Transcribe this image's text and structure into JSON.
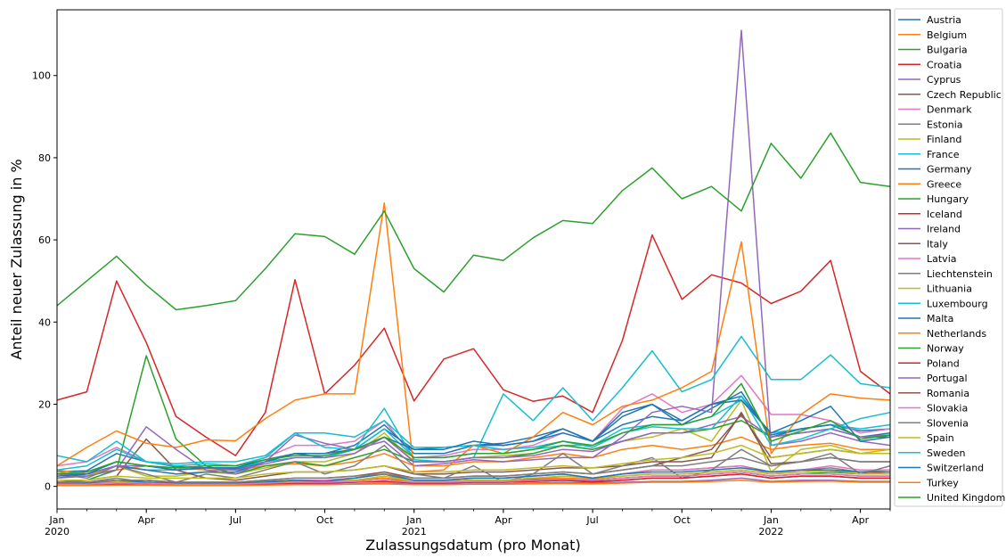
{
  "chart_data": {
    "type": "line",
    "title": "",
    "xlabel": "Zulassungsdatum (pro Monat)",
    "ylabel": "Anteil neuer Zulassung in %",
    "x_range": [
      "2020-01",
      "2022-05"
    ],
    "ylim": [
      -5.5,
      116
    ],
    "grid": false,
    "legend_position": "right",
    "x_ticks": [
      {
        "month": "2020-01",
        "label": "Jan",
        "sub": "2020"
      },
      {
        "month": "2020-04",
        "label": "Apr",
        "sub": ""
      },
      {
        "month": "2020-07",
        "label": "Jul",
        "sub": ""
      },
      {
        "month": "2020-10",
        "label": "Oct",
        "sub": ""
      },
      {
        "month": "2021-01",
        "label": "Jan",
        "sub": "2021"
      },
      {
        "month": "2021-04",
        "label": "Apr",
        "sub": ""
      },
      {
        "month": "2021-07",
        "label": "Jul",
        "sub": ""
      },
      {
        "month": "2021-10",
        "label": "Oct",
        "sub": ""
      },
      {
        "month": "2022-01",
        "label": "Jan",
        "sub": "2022"
      },
      {
        "month": "2022-04",
        "label": "Apr",
        "sub": ""
      }
    ],
    "y_ticks": [
      0,
      20,
      40,
      60,
      80,
      100
    ],
    "months": [
      "2020-01",
      "2020-02",
      "2020-03",
      "2020-04",
      "2020-05",
      "2020-06",
      "2020-07",
      "2020-08",
      "2020-09",
      "2020-10",
      "2020-11",
      "2020-12",
      "2021-01",
      "2021-02",
      "2021-03",
      "2021-04",
      "2021-05",
      "2021-06",
      "2021-07",
      "2021-08",
      "2021-09",
      "2021-10",
      "2021-11",
      "2021-12",
      "2022-01",
      "2022-02",
      "2022-03",
      "2022-04",
      "2022-05"
    ],
    "series": [
      {
        "name": "Austria",
        "color": "#1f77b4",
        "values": [
          3.6,
          3.8,
          8.0,
          6.0,
          4.8,
          4.5,
          4.2,
          6.0,
          8.0,
          7.0,
          9.0,
          14.0,
          9.0,
          9.5,
          10.0,
          10.5,
          12.0,
          14.0,
          11.0,
          15.0,
          17.0,
          16.0,
          20.0,
          22.0,
          12.5,
          14.0,
          15.0,
          13.5,
          14.0
        ]
      },
      {
        "name": "Belgium",
        "color": "#ff7f0e",
        "values": [
          4.0,
          3.0,
          4.0,
          5.0,
          4.5,
          4.0,
          4.0,
          5.0,
          5.5,
          5.0,
          6.0,
          8.0,
          5.0,
          5.0,
          6.0,
          6.0,
          7.0,
          8.0,
          7.0,
          9.0,
          10.0,
          9.0,
          10.0,
          12.0,
          9.0,
          10.0,
          10.5,
          9.0,
          9.0
        ]
      },
      {
        "name": "Bulgaria",
        "color": "#2ca02c",
        "values": [
          1.0,
          1.0,
          1.0,
          1.5,
          1.0,
          1.0,
          1.0,
          1.2,
          1.5,
          1.0,
          1.5,
          2.0,
          1.0,
          1.0,
          1.5,
          1.5,
          2.0,
          2.0,
          1.5,
          2.0,
          2.5,
          2.5,
          3.0,
          3.5,
          2.5,
          3.0,
          3.5,
          3.0,
          3.0
        ]
      },
      {
        "name": "Croatia",
        "color": "#d62728",
        "values": [
          0.5,
          0.5,
          0.5,
          0.8,
          0.5,
          0.5,
          0.5,
          0.6,
          0.8,
          0.8,
          1.0,
          1.5,
          0.8,
          0.8,
          1.0,
          1.0,
          1.2,
          1.5,
          1.0,
          1.5,
          2.0,
          2.0,
          2.5,
          3.0,
          2.0,
          2.5,
          2.5,
          2.0,
          2.0
        ]
      },
      {
        "name": "Cyprus",
        "color": "#9467bd",
        "values": [
          0.3,
          0.3,
          0.3,
          0.4,
          0.3,
          0.3,
          0.3,
          0.4,
          0.5,
          0.5,
          0.6,
          0.8,
          0.5,
          0.5,
          0.6,
          0.6,
          0.8,
          1.0,
          0.8,
          1.0,
          1.2,
          1.2,
          1.5,
          2.0,
          1.2,
          1.5,
          1.5,
          1.2,
          1.2
        ]
      },
      {
        "name": "Czech Republic",
        "color": "#8c564b",
        "values": [
          0.8,
          0.8,
          1.0,
          1.0,
          0.8,
          0.8,
          0.8,
          1.0,
          1.2,
          1.0,
          1.5,
          2.0,
          1.0,
          1.2,
          1.5,
          1.5,
          1.8,
          2.0,
          1.5,
          2.0,
          2.5,
          2.5,
          3.0,
          3.5,
          2.5,
          3.0,
          3.0,
          2.5,
          2.5
        ]
      },
      {
        "name": "Denmark",
        "color": "#e377c2",
        "values": [
          5.0,
          6.0,
          9.5,
          6.0,
          5.0,
          5.5,
          5.0,
          7.0,
          10.0,
          10.0,
          11.0,
          16.0,
          7.0,
          7.5,
          9.0,
          9.0,
          10.0,
          13.0,
          11.0,
          19.0,
          22.5,
          18.0,
          20.0,
          27.0,
          17.5,
          17.5,
          16.0,
          13.0,
          14.0
        ]
      },
      {
        "name": "Estonia",
        "color": "#7f7f7f",
        "values": [
          1.0,
          1.0,
          2.0,
          1.0,
          0.8,
          0.8,
          0.8,
          1.0,
          1.5,
          1.5,
          2.0,
          3.0,
          1.0,
          1.5,
          2.0,
          2.0,
          2.5,
          3.0,
          2.0,
          3.0,
          4.0,
          4.0,
          4.5,
          5.0,
          3.5,
          4.0,
          4.5,
          3.5,
          4.0
        ]
      },
      {
        "name": "Finland",
        "color": "#bcbd22",
        "values": [
          3.5,
          2.5,
          5.0,
          2.5,
          2.5,
          3.5,
          3.0,
          4.5,
          6.0,
          6.0,
          8.0,
          13.0,
          6.0,
          6.0,
          7.0,
          7.5,
          8.0,
          10.0,
          9.0,
          11.0,
          12.0,
          14.0,
          11.0,
          21.0,
          3.5,
          9.0,
          10.0,
          8.0,
          9.0
        ]
      },
      {
        "name": "France",
        "color": "#17becf",
        "values": [
          3.0,
          3.0,
          5.0,
          4.0,
          4.0,
          4.5,
          4.5,
          6.0,
          7.0,
          7.0,
          9.0,
          14.0,
          7.0,
          7.0,
          8.0,
          8.0,
          9.0,
          10.0,
          10.0,
          14.0,
          15.0,
          15.0,
          17.0,
          21.0,
          13.0,
          14.0,
          15.0,
          14.0,
          15.0
        ]
      },
      {
        "name": "Germany",
        "color": "#1f77b4",
        "values": [
          2.0,
          3.0,
          5.0,
          4.0,
          3.0,
          3.5,
          3.5,
          6.0,
          8.0,
          8.0,
          10.0,
          15.0,
          8.0,
          8.0,
          10.0,
          10.0,
          11.0,
          13.0,
          11.0,
          18.0,
          20.0,
          15.0,
          19.0,
          23.0,
          12.0,
          14.0,
          15.0,
          12.0,
          13.0
        ]
      },
      {
        "name": "Greece",
        "color": "#ff7f0e",
        "values": [
          1.0,
          1.0,
          1.0,
          1.0,
          0.8,
          0.8,
          0.8,
          1.0,
          1.2,
          1.2,
          1.5,
          2.0,
          1.2,
          1.2,
          1.5,
          1.5,
          2.0,
          2.0,
          1.8,
          2.5,
          3.0,
          3.0,
          3.5,
          4.0,
          3.0,
          3.5,
          4.0,
          3.0,
          3.5
        ]
      },
      {
        "name": "Hungary",
        "color": "#2ca02c",
        "values": [
          1.5,
          1.5,
          4.0,
          31.8,
          11.5,
          5.0,
          3.0,
          5.0,
          6.0,
          5.0,
          7.0,
          9.0,
          6.0,
          6.0,
          7.0,
          7.0,
          8.0,
          10.0,
          9.0,
          11.0,
          13.0,
          13.0,
          14.0,
          16.0,
          12.0,
          13.0,
          14.0,
          12.0,
          12.0
        ]
      },
      {
        "name": "Iceland",
        "color": "#d62728",
        "values": [
          21.0,
          23.0,
          50.0,
          35.0,
          17.0,
          12.0,
          7.5,
          18.0,
          50.3,
          22.5,
          29.5,
          38.5,
          20.8,
          31.0,
          33.5,
          23.5,
          20.7,
          22.0,
          18.0,
          35.5,
          61.2,
          45.5,
          51.5,
          49.5,
          44.5,
          47.5,
          55.0,
          28.0,
          22.5
        ]
      },
      {
        "name": "Ireland",
        "color": "#9467bd",
        "values": [
          2.0,
          2.5,
          4.0,
          14.5,
          9.0,
          4.0,
          3.0,
          6.0,
          12.5,
          10.5,
          9.0,
          11.0,
          5.0,
          5.5,
          6.5,
          6.0,
          6.5,
          7.0,
          7.0,
          12.0,
          18.0,
          19.5,
          18.0,
          111.0,
          10.0,
          11.0,
          13.0,
          11.0,
          10.0
        ]
      },
      {
        "name": "Italy",
        "color": "#8c564b",
        "values": [
          1.0,
          1.5,
          2.5,
          11.5,
          4.0,
          2.0,
          1.5,
          2.5,
          3.5,
          3.5,
          4.0,
          5.0,
          3.0,
          3.0,
          3.5,
          3.5,
          4.0,
          4.5,
          4.5,
          5.0,
          6.0,
          6.0,
          7.0,
          18.0,
          5.5,
          6.0,
          7.0,
          6.0,
          6.0
        ]
      },
      {
        "name": "Latvia",
        "color": "#e377c2",
        "values": [
          0.5,
          0.5,
          1.0,
          1.0,
          0.8,
          0.8,
          0.8,
          1.0,
          1.5,
          1.5,
          2.0,
          3.0,
          1.5,
          1.5,
          2.0,
          2.0,
          2.5,
          3.0,
          2.0,
          3.0,
          4.0,
          4.0,
          4.5,
          5.0,
          3.0,
          4.0,
          5.0,
          4.0,
          4.0
        ]
      },
      {
        "name": "Liechtenstein",
        "color": "#7f7f7f",
        "values": [
          3.0,
          2.0,
          5.0,
          3.0,
          1.0,
          3.0,
          2.0,
          4.0,
          6.0,
          3.0,
          5.0,
          10.0,
          3.0,
          2.0,
          5.0,
          1.0,
          3.0,
          8.0,
          3.0,
          5.0,
          7.0,
          2.0,
          4.0,
          9.0,
          5.0,
          6.0,
          8.0,
          3.0,
          5.0
        ]
      },
      {
        "name": "Lithuania",
        "color": "#bcbd22",
        "values": [
          0.5,
          0.5,
          1.0,
          1.0,
          0.8,
          0.8,
          0.8,
          1.0,
          1.2,
          1.2,
          1.5,
          2.5,
          1.2,
          1.2,
          1.5,
          1.5,
          2.0,
          2.5,
          2.0,
          2.5,
          3.0,
          3.0,
          3.5,
          4.0,
          3.0,
          3.5,
          4.0,
          3.0,
          3.0
        ]
      },
      {
        "name": "Luxembourg",
        "color": "#17becf",
        "values": [
          7.5,
          6.0,
          11.0,
          6.0,
          5.0,
          5.5,
          5.0,
          7.0,
          13.0,
          9.5,
          9.0,
          19.0,
          6.5,
          6.0,
          7.0,
          22.5,
          16.0,
          24.0,
          16.0,
          24.0,
          33.0,
          23.0,
          26.0,
          36.5,
          26.0,
          26.0,
          32.0,
          25.0,
          24.0
        ]
      },
      {
        "name": "Malta",
        "color": "#1f77b4",
        "values": [
          1.0,
          0.8,
          1.5,
          1.0,
          0.8,
          0.8,
          0.8,
          1.0,
          1.5,
          1.2,
          2.0,
          3.0,
          1.5,
          1.5,
          2.0,
          2.0,
          2.5,
          3.0,
          2.0,
          3.0,
          3.5,
          3.5,
          4.0,
          4.5,
          3.5,
          4.0,
          4.0,
          3.5,
          3.5
        ]
      },
      {
        "name": "Netherlands",
        "color": "#ff7f0e",
        "values": [
          5.0,
          9.5,
          13.5,
          10.5,
          9.5,
          11.3,
          11.1,
          16.5,
          21.0,
          22.5,
          22.5,
          69.0,
          3.5,
          4.0,
          10.0,
          8.0,
          12.0,
          18.0,
          15.0,
          19.5,
          21.0,
          24.0,
          28.0,
          59.5,
          8.0,
          17.5,
          22.5,
          21.5,
          21.0
        ]
      },
      {
        "name": "Norway",
        "color": "#2ca02c",
        "values": [
          44.0,
          50.0,
          56.0,
          49.0,
          43.0,
          44.0,
          45.2,
          53.0,
          61.5,
          60.8,
          56.5,
          67.0,
          53.0,
          47.3,
          56.3,
          55.0,
          60.5,
          64.7,
          64.0,
          72.0,
          77.5,
          70.0,
          73.0,
          67.0,
          83.5,
          75.0,
          86.0,
          74.0,
          73.0
        ]
      },
      {
        "name": "Poland",
        "color": "#d62728",
        "values": [
          0.5,
          0.5,
          0.5,
          0.8,
          0.5,
          0.5,
          0.5,
          0.6,
          0.8,
          0.8,
          1.0,
          1.2,
          0.8,
          0.8,
          1.0,
          1.0,
          1.2,
          1.5,
          1.2,
          1.5,
          2.0,
          2.0,
          2.5,
          3.0,
          2.0,
          2.5,
          2.5,
          2.0,
          2.0
        ]
      },
      {
        "name": "Portugal",
        "color": "#9467bd",
        "values": [
          3.0,
          3.0,
          5.0,
          5.0,
          4.0,
          4.5,
          4.0,
          5.5,
          7.0,
          7.0,
          8.0,
          12.0,
          6.0,
          6.0,
          7.0,
          7.0,
          7.5,
          9.0,
          8.5,
          11.0,
          13.0,
          13.0,
          15.0,
          17.0,
          12.0,
          13.0,
          14.0,
          12.0,
          12.5
        ]
      },
      {
        "name": "Romania",
        "color": "#8c564b",
        "values": [
          1.0,
          1.0,
          1.5,
          1.5,
          1.0,
          1.0,
          1.0,
          1.5,
          2.0,
          2.0,
          2.5,
          3.5,
          2.0,
          2.0,
          2.5,
          2.5,
          3.0,
          3.5,
          3.0,
          4.0,
          5.0,
          7.0,
          9.0,
          17.5,
          7.0,
          8.0,
          9.0,
          8.0,
          8.0
        ]
      },
      {
        "name": "Slovakia",
        "color": "#e377c2",
        "values": [
          0.5,
          0.5,
          0.8,
          0.8,
          0.5,
          0.5,
          0.5,
          0.8,
          1.0,
          1.0,
          1.2,
          1.5,
          1.0,
          1.0,
          1.2,
          1.2,
          1.5,
          1.8,
          1.5,
          2.0,
          2.5,
          2.5,
          3.0,
          3.5,
          2.5,
          3.0,
          3.0,
          2.5,
          2.5
        ]
      },
      {
        "name": "Slovenia",
        "color": "#7f7f7f",
        "values": [
          1.0,
          1.0,
          1.5,
          1.5,
          1.0,
          1.0,
          1.0,
          1.5,
          2.0,
          2.0,
          2.5,
          3.0,
          2.0,
          2.0,
          2.5,
          2.5,
          3.0,
          3.5,
          3.0,
          4.0,
          5.0,
          5.0,
          6.0,
          7.0,
          5.0,
          6.0,
          7.0,
          6.0,
          6.0
        ]
      },
      {
        "name": "Spain",
        "color": "#bcbd22",
        "values": [
          1.5,
          1.5,
          2.5,
          2.0,
          2.0,
          2.0,
          2.0,
          3.0,
          3.5,
          3.5,
          4.0,
          5.0,
          3.5,
          3.5,
          4.0,
          4.0,
          4.5,
          5.0,
          4.5,
          5.5,
          6.5,
          7.0,
          8.0,
          10.0,
          7.0,
          8.0,
          9.0,
          8.0,
          8.0
        ]
      },
      {
        "name": "Sweden",
        "color": "#17becf",
        "values": [
          4.0,
          5.0,
          9.0,
          6.0,
          5.5,
          6.0,
          6.0,
          7.5,
          13.0,
          13.0,
          12.0,
          16.0,
          9.5,
          9.5,
          10.0,
          9.0,
          9.5,
          11.0,
          9.5,
          13.0,
          14.5,
          14.0,
          14.0,
          22.0,
          10.0,
          11.5,
          14.0,
          16.5,
          18.0
        ]
      },
      {
        "name": "Switzerland",
        "color": "#1f77b4",
        "values": [
          2.5,
          3.0,
          6.0,
          5.0,
          4.0,
          4.5,
          4.5,
          6.5,
          8.0,
          8.0,
          9.0,
          12.0,
          9.0,
          9.0,
          11.0,
          10.0,
          11.0,
          14.0,
          11.0,
          17.0,
          20.0,
          16.0,
          20.0,
          21.0,
          13.0,
          16.0,
          19.5,
          11.0,
          12.0
        ]
      },
      {
        "name": "Turkey",
        "color": "#ff7f0e",
        "values": [
          0.2,
          0.2,
          0.3,
          0.3,
          0.2,
          0.2,
          0.2,
          0.3,
          0.4,
          0.4,
          0.5,
          0.6,
          0.4,
          0.4,
          0.5,
          0.5,
          0.6,
          0.7,
          0.6,
          0.8,
          1.0,
          1.0,
          1.2,
          1.5,
          1.0,
          1.2,
          1.3,
          1.0,
          1.0
        ]
      },
      {
        "name": "United Kingdom",
        "color": "#2ca02c",
        "values": [
          3.0,
          3.5,
          6.0,
          5.0,
          4.5,
          5.0,
          5.0,
          6.5,
          7.5,
          7.5,
          9.0,
          12.0,
          7.0,
          7.0,
          8.0,
          8.0,
          9.0,
          11.0,
          10.0,
          13.0,
          15.0,
          15.0,
          17.0,
          25.0,
          11.0,
          13.5,
          16.0,
          11.5,
          12.5
        ]
      }
    ]
  }
}
